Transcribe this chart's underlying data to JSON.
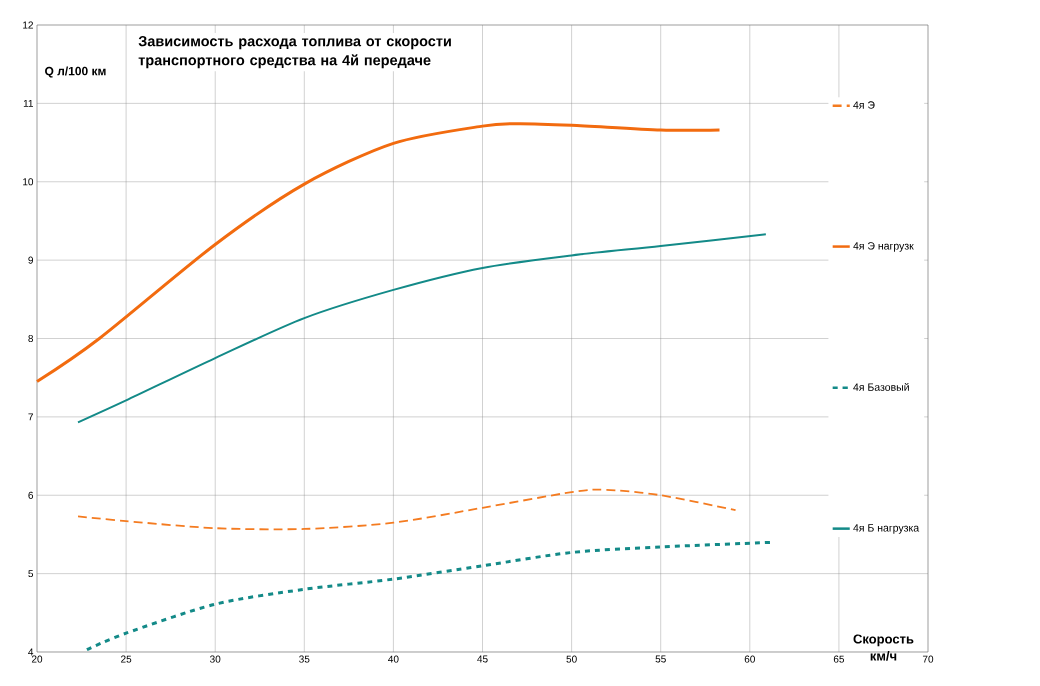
{
  "chart_data": {
    "type": "line",
    "title": "Зависимость расхода топлива от скорости транспортного средства на 4й передаче",
    "xlabel": "Скорость км/ч",
    "ylabel": "Q л/100 км",
    "xlim": [
      20,
      70
    ],
    "xticks": [
      20,
      25,
      30,
      35,
      40,
      45,
      50,
      55,
      60,
      65,
      70
    ],
    "ylim": [
      4,
      12
    ],
    "yticks": [
      4,
      5,
      6,
      7,
      8,
      9,
      10,
      11,
      12
    ],
    "grid": true,
    "legend": "right",
    "marker": "none",
    "series": [
      {
        "name": "4я Э",
        "color": "#f47b20",
        "line_style": "dashed",
        "x": [
          22.3,
          25,
          30,
          35,
          40,
          45,
          50,
          51.9,
          55,
          59.2
        ],
        "values": [
          5.73,
          5.67,
          5.58,
          5.57,
          5.65,
          5.84,
          6.04,
          6.07,
          6.0,
          5.81
        ]
      },
      {
        "name": "4я Э нагрузк",
        "color": "#f26b0f",
        "line_style": "solid",
        "x": [
          20,
          23.5,
          30,
          35,
          40,
          45,
          47,
          50,
          55,
          58.3
        ],
        "values": [
          7.45,
          8.0,
          9.2,
          9.97,
          10.49,
          10.71,
          10.74,
          10.72,
          10.66,
          10.66
        ]
      },
      {
        "name": "4я Базовый",
        "color": "#138a88",
        "line_style": "dotted",
        "x": [
          22.8,
          25,
          30,
          35,
          40,
          45,
          50,
          55,
          61.3
        ],
        "values": [
          4.03,
          4.24,
          4.61,
          4.8,
          4.93,
          5.1,
          5.27,
          5.34,
          5.4
        ]
      },
      {
        "name": "4я Б нагрузка",
        "color": "#138a88",
        "line_style": "solid",
        "x": [
          22.3,
          25,
          30,
          35,
          40,
          45,
          50,
          55,
          60.9
        ],
        "values": [
          6.93,
          7.21,
          7.75,
          8.26,
          8.62,
          8.9,
          9.06,
          9.18,
          9.33
        ]
      }
    ]
  }
}
